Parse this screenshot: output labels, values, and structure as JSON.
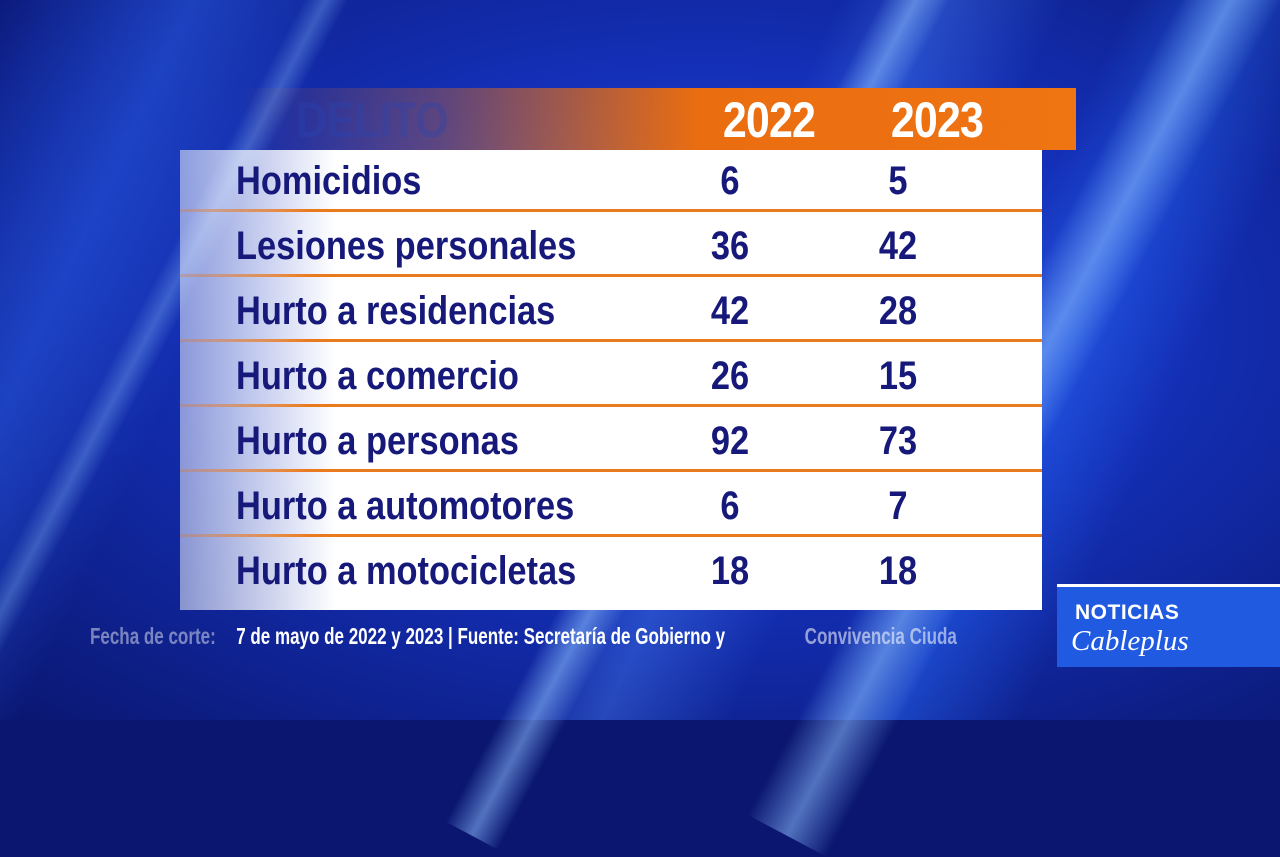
{
  "colors": {
    "background": "#1430b8",
    "header_accent": "#ea6d10",
    "row_separator": "#ea7a1e",
    "table_text": "#16197a",
    "brand_box": "#1f5ae0"
  },
  "chart_data": {
    "type": "table",
    "columns": [
      "DELITO",
      "2022",
      "2023"
    ],
    "rows": [
      {
        "label": "Homicidios",
        "values": [
          "6",
          "5"
        ]
      },
      {
        "label": "Lesiones personales",
        "values": [
          "36",
          "42"
        ]
      },
      {
        "label": "Hurto a residencias",
        "values": [
          "42",
          "28"
        ]
      },
      {
        "label": "Hurto a comercio",
        "values": [
          "26",
          "15"
        ]
      },
      {
        "label": "Hurto a personas",
        "values": [
          "92",
          "73"
        ]
      },
      {
        "label": "Hurto a automotores",
        "values": [
          "6",
          "7"
        ]
      },
      {
        "label": "Hurto a motocicletas",
        "values": [
          "18",
          "18"
        ]
      }
    ]
  },
  "footer": {
    "lead": "Fecha de corte: ",
    "main": "7 de mayo de 2022 y 2023 | Fuente: Secretaría de Gobierno y ",
    "tail": "Convivencia Ciuda"
  },
  "brand": {
    "line1": "NOTICIAS",
    "line2": "Cableplus"
  }
}
